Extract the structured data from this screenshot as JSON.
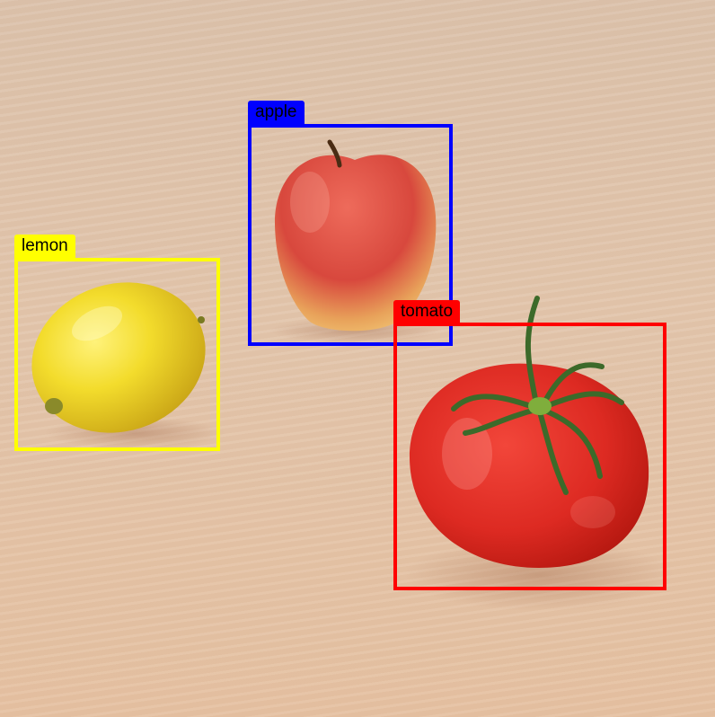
{
  "detections": [
    {
      "label": "lemon",
      "color": "#ffff00"
    },
    {
      "label": "apple",
      "color": "#0000ff"
    },
    {
      "label": "tomato",
      "color": "#ff0000"
    }
  ],
  "objects": [
    "lemon",
    "apple",
    "tomato"
  ],
  "surface": "light wooden table"
}
